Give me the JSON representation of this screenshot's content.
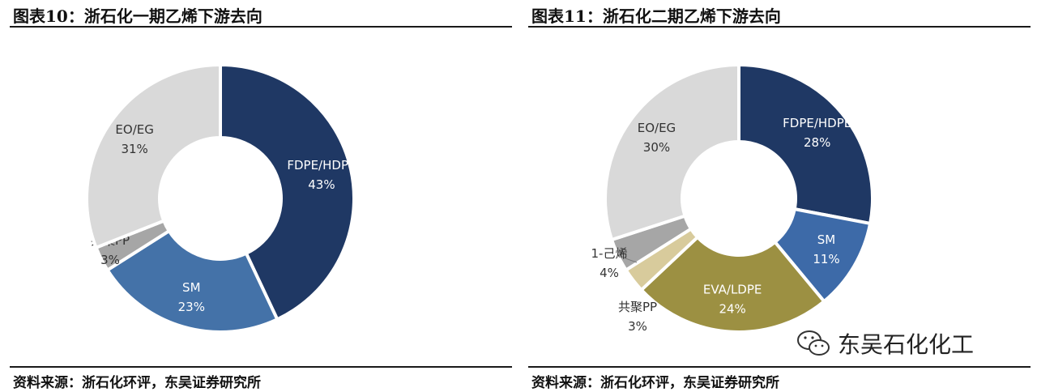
{
  "charts": [
    {
      "title": "图表10：浙石化一期乙烯下游去向",
      "source": "资料来源：浙石化环评，东吴证券研究所"
    },
    {
      "title": "图表11：浙石化二期乙烯下游去向",
      "source": "资料来源：浙石化环评，东吴证券研究所"
    }
  ],
  "chart_data": [
    {
      "type": "pie",
      "title": "图表10：浙石化一期乙烯下游去向",
      "slices": [
        {
          "label": "FDPE/HDPE",
          "value": 43,
          "value_label": "43%",
          "color": "#1f3864"
        },
        {
          "label": "SM",
          "value": 23,
          "value_label": "23%",
          "color": "#4472a8"
        },
        {
          "label": "共聚PP",
          "value": 3,
          "value_label": "3%",
          "color": "#a6a6a6"
        },
        {
          "label": "EO/EG",
          "value": 31,
          "value_label": "31%",
          "color": "#d9d9d9"
        }
      ]
    },
    {
      "type": "pie",
      "title": "图表11：浙石化二期乙烯下游去向",
      "slices": [
        {
          "label": "FDPE/HDPE",
          "value": 28,
          "value_label": "28%",
          "color": "#1f3864"
        },
        {
          "label": "SM",
          "value": 11,
          "value_label": "11%",
          "color": "#3d6aa8"
        },
        {
          "label": "EVA/LDPE",
          "value": 24,
          "value_label": "24%",
          "color": "#9c9042"
        },
        {
          "label": "共聚PP",
          "value": 3,
          "value_label": "3%",
          "color": "#d8cb9c"
        },
        {
          "label": "1-己烯",
          "value": 4,
          "value_label": "4%",
          "color": "#a6a6a6"
        },
        {
          "label": "EO/EG",
          "value": 30,
          "value_label": "30%",
          "color": "#d9d9d9"
        }
      ]
    }
  ],
  "watermark": {
    "text": "东吴石化化工",
    "icon": "wechat-icon"
  }
}
